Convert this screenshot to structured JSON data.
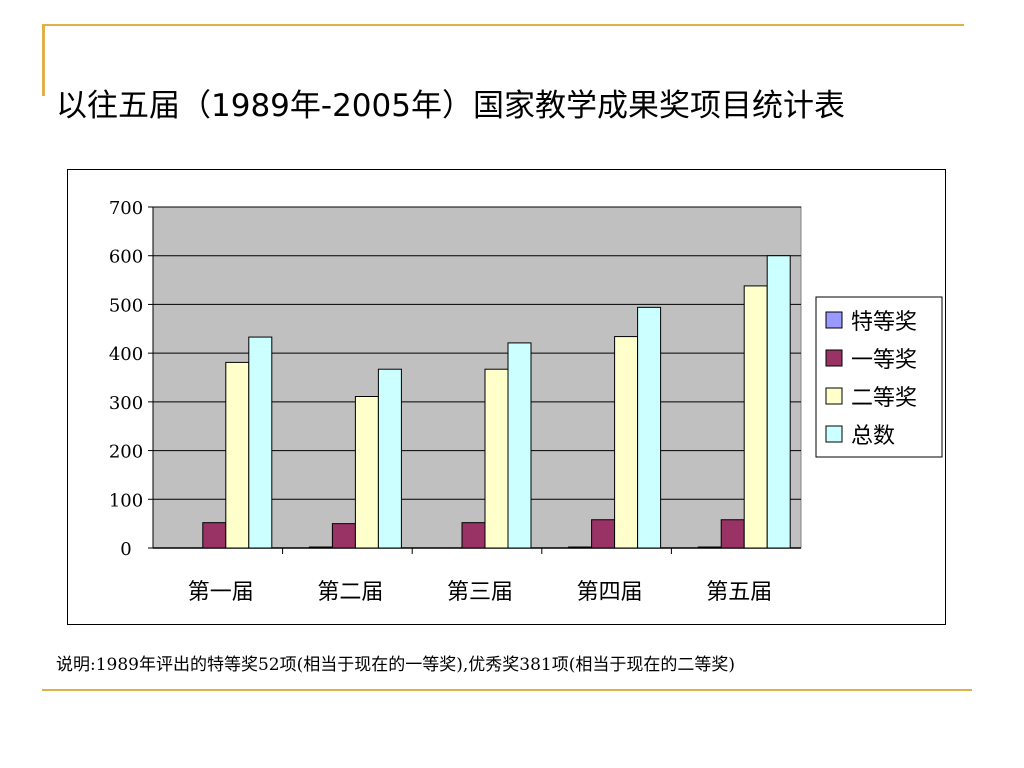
{
  "slide": {
    "title": "以往五届（1989年-2005年）国家教学成果奖项目统计表",
    "note": "说明:1989年评出的特等奖52项(相当于现在的一等奖),优秀奖381项(相当于现在的二等奖)"
  },
  "chart_data": {
    "type": "bar",
    "categories": [
      "第一届",
      "第二届",
      "第三届",
      "第四届",
      "第五届"
    ],
    "series": [
      {
        "name": "特等奖",
        "color": "#9999FF",
        "values": [
          0,
          2,
          0,
          2,
          2
        ]
      },
      {
        "name": "一等奖",
        "color": "#993366",
        "values": [
          52,
          50,
          52,
          58,
          58
        ]
      },
      {
        "name": "二等奖",
        "color": "#FFFFCC",
        "values": [
          381,
          311,
          367,
          434,
          538
        ]
      },
      {
        "name": "总数",
        "color": "#CCFFFF",
        "values": [
          433,
          367,
          421,
          494,
          600
        ]
      }
    ],
    "ylim": [
      0,
      700
    ],
    "yticks": [
      0,
      100,
      200,
      300,
      400,
      500,
      600,
      700
    ],
    "grid": true,
    "plot_background": "#C0C0C0",
    "legend_position": "right"
  }
}
